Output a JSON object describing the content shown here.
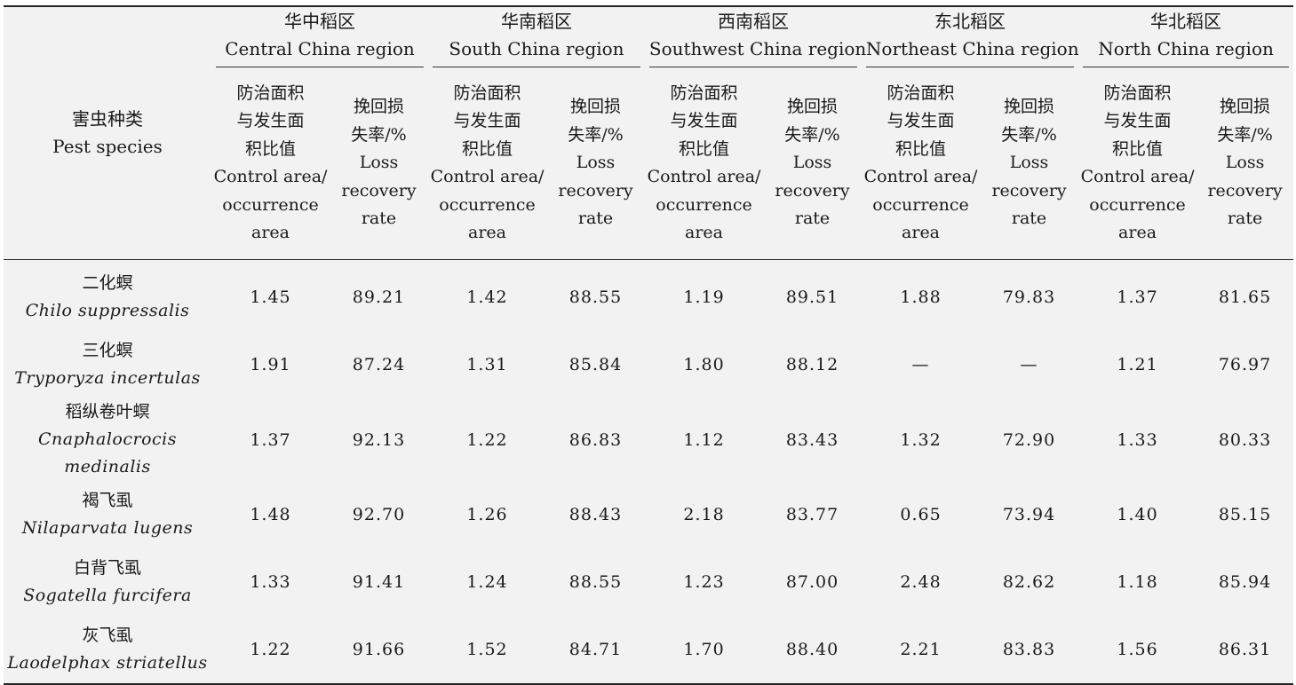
{
  "header": {
    "pest_species_cn": "害虫种类",
    "pest_species_en": "Pest species",
    "ratio_cn_lines": [
      "防治面积",
      "与发生面",
      "积比值"
    ],
    "ratio_en_lines": [
      "Control area/",
      "occurrence",
      "area"
    ],
    "loss_cn_lines": [
      "挽回损",
      "失率/%"
    ],
    "loss_en_lines": [
      "Loss",
      "recovery",
      "rate"
    ]
  },
  "regions": [
    {
      "cn": "华中稻区",
      "en": "Central China region"
    },
    {
      "cn": "华南稻区",
      "en": "South China region"
    },
    {
      "cn": "西南稻区",
      "en": "Southwest China region"
    },
    {
      "cn": "东北稻区",
      "en": "Northeast China region"
    },
    {
      "cn": "华北稻区",
      "en": "North China region"
    }
  ],
  "rows": [
    {
      "cn": "二化螟",
      "sci": "Chilo suppressalis",
      "values": [
        "1.45",
        "89.21",
        "1.42",
        "88.55",
        "1.19",
        "89.51",
        "1.88",
        "79.83",
        "1.37",
        "81.65"
      ]
    },
    {
      "cn": "三化螟",
      "sci": "Tryporyza incertulas",
      "values": [
        "1.91",
        "87.24",
        "1.31",
        "85.84",
        "1.80",
        "88.12",
        "—",
        "—",
        "1.21",
        "76.97"
      ]
    },
    {
      "cn": "稻纵卷叶螟",
      "sci": "Cnaphalocrocis medinalis",
      "values": [
        "1.37",
        "92.13",
        "1.22",
        "86.83",
        "1.12",
        "83.43",
        "1.32",
        "72.90",
        "1.33",
        "80.33"
      ]
    },
    {
      "cn": "褐飞虱",
      "sci": "Nilaparvata lugens",
      "values": [
        "1.48",
        "92.70",
        "1.26",
        "88.43",
        "2.18",
        "83.77",
        "0.65",
        "73.94",
        "1.40",
        "85.15"
      ]
    },
    {
      "cn": "白背飞虱",
      "sci": "Sogatella furcifera",
      "values": [
        "1.33",
        "91.41",
        "1.24",
        "88.55",
        "1.23",
        "87.00",
        "2.48",
        "82.62",
        "1.18",
        "85.94"
      ]
    },
    {
      "cn": "灰飞虱",
      "sci": "Laodelphax striatellus",
      "values": [
        "1.22",
        "91.66",
        "1.52",
        "84.71",
        "1.70",
        "88.40",
        "2.21",
        "83.83",
        "1.56",
        "86.31"
      ]
    }
  ]
}
